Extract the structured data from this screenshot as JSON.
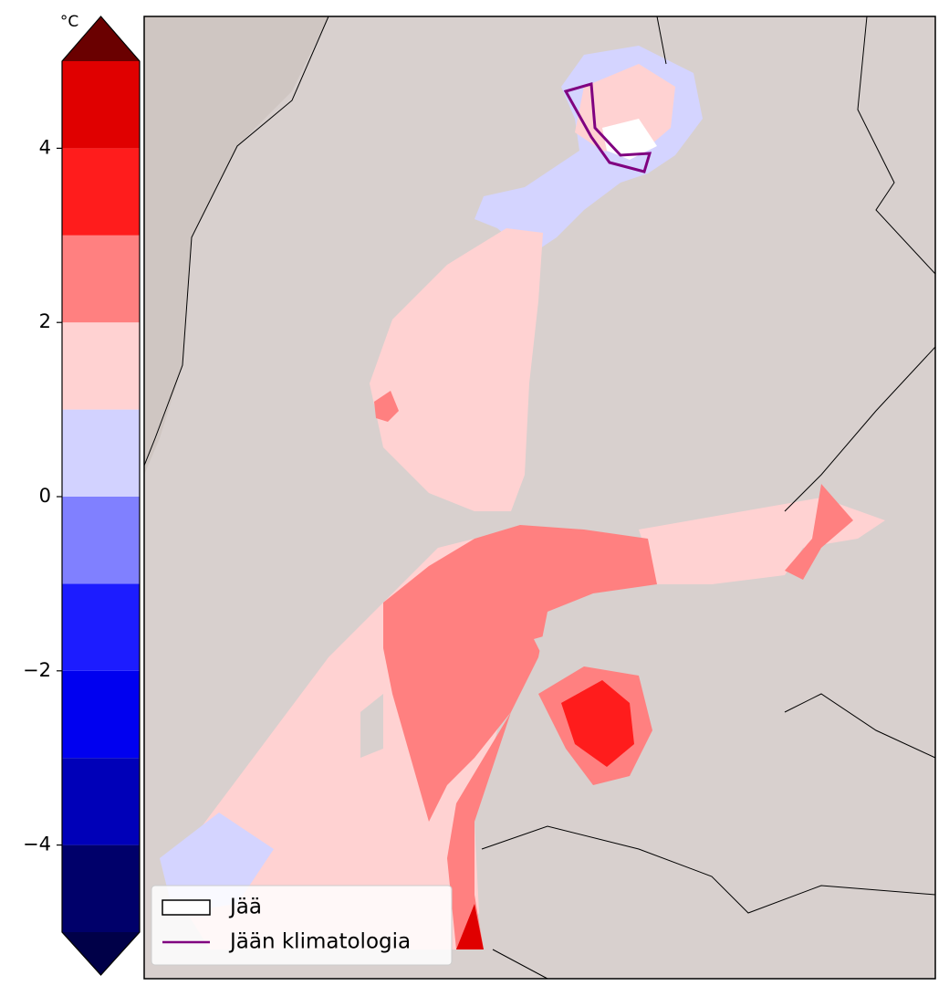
{
  "colorbar": {
    "unit": "°C",
    "levels": [
      -5,
      -4,
      -3,
      -2,
      -1,
      0,
      1,
      2,
      3,
      4,
      5
    ],
    "colors": [
      "#00006a",
      "#0000b8",
      "#0000f0",
      "#1c1cff",
      "#8080ff",
      "#d2d2ff",
      "#ffd2d2",
      "#ff8080",
      "#ff1c1c",
      "#e00000",
      "#b00000"
    ],
    "under_color": "#000048",
    "over_color": "#6a0000",
    "ticks": [
      4,
      2,
      0,
      {
        "value": -2,
        "label": "−2"
      },
      {
        "value": -4,
        "label": "−4"
      }
    ]
  },
  "legend": {
    "items": [
      {
        "label": "Jää",
        "color": "#000000"
      },
      {
        "label": "Jään klimatologia",
        "color": "#800080"
      }
    ]
  }
}
